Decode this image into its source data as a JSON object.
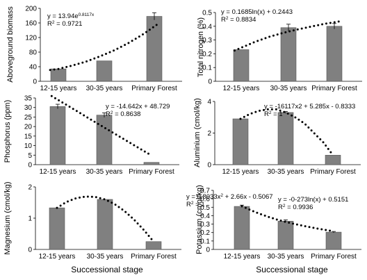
{
  "x_axis_title": "Successional stage",
  "chart_data": [
    {
      "type": "bar",
      "categories": [
        "12-15 years",
        "30-35 years",
        "Primary Forest"
      ],
      "values": [
        34,
        56,
        178
      ],
      "errors": [
        0,
        0,
        10
      ],
      "ylabel": "Aboveground biomass",
      "ylim": [
        0,
        200
      ],
      "yticks": [
        0,
        40,
        80,
        120,
        160,
        200
      ],
      "trendline": {
        "x": [
          0.82,
          1.0,
          1.3,
          1.6,
          1.9,
          2.2,
          2.5,
          2.8,
          3.08
        ],
        "y": [
          31,
          34,
          43,
          54,
          68,
          85,
          106,
          131,
          158
        ]
      },
      "annotation": [
        {
          "base": "y = 13.94e",
          "sup": "0.8117x"
        },
        {
          "base": "R",
          "sup": "2",
          "rest": " = 0.9721"
        }
      ],
      "bar_color": "#808080",
      "grid": false
    },
    {
      "type": "bar",
      "categories": [
        "12-15 years",
        "30-35 years",
        "Primary Forest"
      ],
      "values": [
        0.23,
        0.39,
        0.4
      ],
      "errors": [
        0,
        0.025,
        0.02
      ],
      "ylabel": "Total nitrogen (%)",
      "ylim": [
        0,
        0.5
      ],
      "yticks": [
        0,
        0.1,
        0.2,
        0.3,
        0.4,
        0.5
      ],
      "trendline": {
        "x": [
          0.86,
          1.0,
          1.3,
          1.6,
          1.9,
          2.2,
          2.5,
          2.8,
          3.12
        ],
        "y": [
          0.223,
          0.244,
          0.288,
          0.324,
          0.353,
          0.377,
          0.398,
          0.418,
          0.436
        ]
      },
      "annotation": [
        {
          "base": "y = 0.1685ln(x) + 0.2443"
        },
        {
          "base": "R",
          "sup": "2",
          "rest": " = 0.8834"
        }
      ],
      "bar_color": "#808080",
      "grid": false
    },
    {
      "type": "bar",
      "categories": [
        "12-15 years",
        "30-35 years",
        "Primary Forest"
      ],
      "values": [
        30.5,
        26,
        1.2
      ],
      "errors": [
        1.2,
        1.2,
        0
      ],
      "ylabel": "Phosphorus (ppm)",
      "ylim": [
        0,
        35
      ],
      "yticks": [
        0,
        5,
        10,
        15,
        20,
        25,
        30,
        35
      ],
      "trendline": {
        "x": [
          0.87,
          1.2,
          1.5,
          1.8,
          2.1,
          2.4,
          2.7,
          3.0
        ],
        "y": [
          36,
          31.2,
          26.8,
          22.4,
          18.0,
          13.6,
          9.2,
          4.8
        ]
      },
      "annotation": [
        {
          "base": "y = -14.642x + 48.729"
        },
        {
          "base": "R",
          "sup": "2",
          "rest": " = 0.8638"
        }
      ],
      "bar_color": "#808080",
      "grid": false
    },
    {
      "type": "bar",
      "categories": [
        "12-15 years",
        "30-35 years",
        "Primary Forest"
      ],
      "values": [
        2.9,
        3.3,
        0.6
      ],
      "errors": [
        0,
        0.06,
        0
      ],
      "ylabel": "Aluminium (cmol/kg)",
      "ylim": [
        0,
        4
      ],
      "yticks": [
        0,
        2,
        4
      ],
      "trendline": {
        "x": [
          1.0,
          1.2,
          1.4,
          1.6,
          1.8,
          2.0,
          2.2,
          2.4,
          2.6,
          2.8,
          3.0
        ],
        "y": [
          2.9,
          3.2,
          3.4,
          3.5,
          3.5,
          3.3,
          3.0,
          2.6,
          2.0,
          1.4,
          0.6
        ]
      },
      "annotation": [
        {
          "base": "y = -16117x2 + 5.285x - 0.8333"
        },
        {
          "base": "R",
          "sup": "2",
          "rest": " = 1"
        }
      ],
      "bar_color": "#808080",
      "grid": false
    },
    {
      "type": "bar",
      "categories": [
        "12-15 years",
        "30-35 years",
        "Primary Forest"
      ],
      "values": [
        1.33,
        1.6,
        0.25
      ],
      "errors": [
        0,
        0,
        0
      ],
      "ylabel": "Magnesium (cmol/kg)",
      "ylim": [
        0,
        2
      ],
      "yticks": [
        0,
        1,
        2
      ],
      "trendline": {
        "x": [
          1.0,
          1.2,
          1.4,
          1.6,
          1.8,
          2.0,
          2.2,
          2.4,
          2.6,
          2.8,
          3.0
        ],
        "y": [
          1.33,
          1.52,
          1.64,
          1.69,
          1.68,
          1.6,
          1.45,
          1.23,
          0.95,
          0.62,
          0.25
        ]
      },
      "annotation": [
        {
          "base": "y = 0.8033x",
          "sup": "2",
          "rest": " + 2.66x - 0.5067"
        },
        {
          "base": "R",
          "sup": "2",
          "rest": " = 1"
        }
      ],
      "bar_color": "#808080",
      "grid": false
    },
    {
      "type": "bar",
      "categories": [
        "12-15 years",
        "30-35 years",
        "Primary Forest"
      ],
      "values": [
        0.51,
        0.335,
        0.205
      ],
      "errors": [
        0.015,
        0.015,
        0.008
      ],
      "ylabel": "Potassium (cmol/kg)",
      "ylim": [
        0,
        0.7
      ],
      "yticks": [
        0,
        0.1,
        0.2,
        0.3,
        0.4,
        0.5,
        0.6,
        0.7
      ],
      "trendline": {
        "x": [
          1.0,
          1.2,
          1.4,
          1.6,
          1.8,
          2.0,
          2.2,
          2.4,
          2.6,
          2.8,
          3.0
        ],
        "y": [
          0.515,
          0.465,
          0.423,
          0.387,
          0.354,
          0.326,
          0.3,
          0.276,
          0.254,
          0.234,
          0.215
        ]
      },
      "annotation": [
        {
          "base": "y = -0-273ln(x) + 0.5151"
        },
        {
          "base": "R",
          "sup": "2",
          "rest": " = 0.9936"
        }
      ],
      "bar_color": "#808080",
      "grid": false
    }
  ]
}
